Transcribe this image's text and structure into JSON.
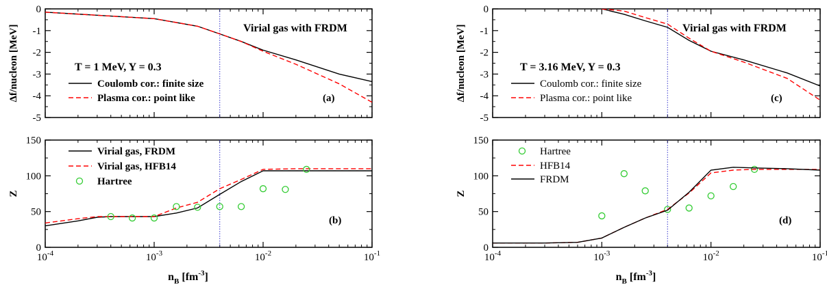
{
  "chart_data": [
    {
      "id": "a",
      "type": "line",
      "panel_label": "(a)",
      "title": "",
      "ylabel": "Δf/nucleon [MeV]",
      "xlabel": "",
      "xscale": "log",
      "xlim": [
        0.0001,
        0.1
      ],
      "ylim": [
        -5,
        0
      ],
      "yticks": [
        0,
        -1,
        -2,
        -3,
        -4,
        -5
      ],
      "xticks": [],
      "show_x_ticklabels": false,
      "vline": 0.004,
      "annotations": [
        "Virial gas with FRDM",
        "T = 1 MeV, Y = 0.3"
      ],
      "legend_bold": true,
      "series": [
        {
          "name": "Coulomb cor.: finite size",
          "style": "solid",
          "color": "#000000",
          "x": [
            0.0001,
            0.001,
            0.0025,
            0.004,
            0.0063,
            0.01,
            0.02,
            0.05,
            0.1
          ],
          "y": [
            -0.15,
            -0.45,
            -0.8,
            -1.15,
            -1.5,
            -1.9,
            -2.35,
            -3.0,
            -3.35
          ]
        },
        {
          "name": "Plasma cor.: point like",
          "style": "dashed",
          "color": "#ff0000",
          "x": [
            0.0001,
            0.001,
            0.0025,
            0.004,
            0.0063,
            0.01,
            0.02,
            0.05,
            0.1
          ],
          "y": [
            -0.15,
            -0.45,
            -0.8,
            -1.15,
            -1.5,
            -1.95,
            -2.55,
            -3.45,
            -4.3
          ]
        }
      ]
    },
    {
      "id": "b",
      "type": "line",
      "panel_label": "(b)",
      "title": "",
      "ylabel": "Z",
      "xlabel": "n_B [fm^-3]",
      "xscale": "log",
      "xlim": [
        0.0001,
        0.1
      ],
      "ylim": [
        0,
        150
      ],
      "yticks": [
        0,
        50,
        100,
        150
      ],
      "xticks": [
        "10^-4",
        "10^-3",
        "10^-2",
        "10^-1"
      ],
      "show_x_ticklabels": true,
      "vline": 0.004,
      "legend_bold": true,
      "series": [
        {
          "name": "Virial gas, FRDM",
          "style": "solid",
          "color": "#000000",
          "x": [
            0.0001,
            0.0002,
            0.0003,
            0.0004,
            0.0006,
            0.001,
            0.0016,
            0.0025,
            0.004,
            0.0063,
            0.01,
            0.02,
            0.05,
            0.1
          ],
          "y": [
            30,
            37,
            42,
            43,
            43,
            43,
            48,
            55,
            74,
            92,
            107,
            107,
            107,
            107
          ]
        },
        {
          "name": "Virial gas, HFB14",
          "style": "dashed",
          "color": "#ff0000",
          "x": [
            0.0001,
            0.0002,
            0.0003,
            0.0004,
            0.0006,
            0.001,
            0.0016,
            0.0025,
            0.004,
            0.0063,
            0.01,
            0.02,
            0.05,
            0.1
          ],
          "y": [
            34,
            40,
            43,
            43,
            43,
            43,
            55,
            63,
            82,
            95,
            109,
            110,
            110,
            110
          ]
        },
        {
          "name": "Hartree",
          "style": "marker",
          "color": "#33cc33",
          "x": [
            0.0004,
            0.00063,
            0.001,
            0.0016,
            0.0025,
            0.004,
            0.0063,
            0.01,
            0.016,
            0.025
          ],
          "y": [
            43,
            41,
            41,
            57,
            56,
            57,
            57,
            82,
            81,
            109
          ]
        }
      ]
    },
    {
      "id": "c",
      "type": "line",
      "panel_label": "(c)",
      "title": "",
      "ylabel": "Δf/nucleon [MeV]",
      "xlabel": "",
      "xscale": "log",
      "xlim": [
        0.0001,
        0.1
      ],
      "ylim": [
        -5,
        0
      ],
      "yticks": [
        0,
        -1,
        -2,
        -3,
        -4,
        -5
      ],
      "xticks": [],
      "show_x_ticklabels": false,
      "vline": 0.004,
      "annotations": [
        "Virial gas with FRDM",
        "T = 3.16 MeV, Y = 0.3"
      ],
      "legend_bold": false,
      "series": [
        {
          "name": "Coulomb cor.: finite size",
          "style": "solid",
          "color": "#000000",
          "x": [
            0.001,
            0.0016,
            0.0025,
            0.004,
            0.0063,
            0.01,
            0.02,
            0.05,
            0.1
          ],
          "y": [
            0.0,
            -0.25,
            -0.55,
            -0.85,
            -1.45,
            -1.95,
            -2.35,
            -2.95,
            -3.55
          ]
        },
        {
          "name": "Plasma cor.: point like",
          "style": "dashed",
          "color": "#ff0000",
          "x": [
            0.001,
            0.0016,
            0.0025,
            0.004,
            0.0063,
            0.01,
            0.02,
            0.05,
            0.1
          ],
          "y": [
            0.0,
            -0.1,
            -0.4,
            -0.7,
            -1.35,
            -1.95,
            -2.45,
            -3.2,
            -4.2
          ]
        }
      ]
    },
    {
      "id": "d",
      "type": "line",
      "panel_label": "(d)",
      "title": "",
      "ylabel": "Z",
      "xlabel": "n_B [fm^-3]",
      "xscale": "log",
      "xlim": [
        0.0001,
        0.1
      ],
      "ylim": [
        0,
        150
      ],
      "yticks": [
        0,
        50,
        100,
        150
      ],
      "xticks": [
        "10^-4",
        "10^-3",
        "10^-2",
        "10^-1"
      ],
      "show_x_ticklabels": true,
      "vline": 0.004,
      "legend_bold": false,
      "series": [
        {
          "name": "Hartree",
          "style": "marker",
          "color": "#33cc33",
          "x": [
            0.001,
            0.0016,
            0.0025,
            0.004,
            0.0063,
            0.01,
            0.016,
            0.025
          ],
          "y": [
            44,
            103,
            79,
            53,
            55,
            72,
            85,
            109
          ]
        },
        {
          "name": "HFB14",
          "style": "dashed",
          "color": "#ff0000",
          "x": [
            0.0001,
            0.0003,
            0.0006,
            0.001,
            0.0016,
            0.0025,
            0.004,
            0.0063,
            0.01,
            0.016,
            0.025,
            0.05,
            0.1
          ],
          "y": [
            6,
            6,
            7,
            13,
            28,
            41,
            53,
            76,
            104,
            108,
            109,
            109,
            109
          ]
        },
        {
          "name": "FRDM",
          "style": "solid",
          "color": "#000000",
          "x": [
            0.0001,
            0.0003,
            0.0006,
            0.001,
            0.0016,
            0.0025,
            0.004,
            0.0063,
            0.01,
            0.016,
            0.025,
            0.05,
            0.1
          ],
          "y": [
            6,
            6,
            7,
            13,
            28,
            41,
            52,
            77,
            108,
            112,
            111,
            110,
            108
          ]
        }
      ]
    }
  ]
}
